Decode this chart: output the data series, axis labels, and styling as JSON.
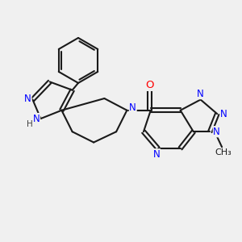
{
  "bg_color": "#f0f0f0",
  "bond_color": "#1a1a1a",
  "n_color": "#0000ff",
  "o_color": "#ff0000",
  "h_color": "#404040",
  "font_size": 8.5,
  "lw": 1.5,
  "figsize": [
    3.0,
    3.0
  ],
  "dpi": 100,
  "xlim": [
    0,
    10
  ],
  "ylim": [
    0,
    10
  ]
}
